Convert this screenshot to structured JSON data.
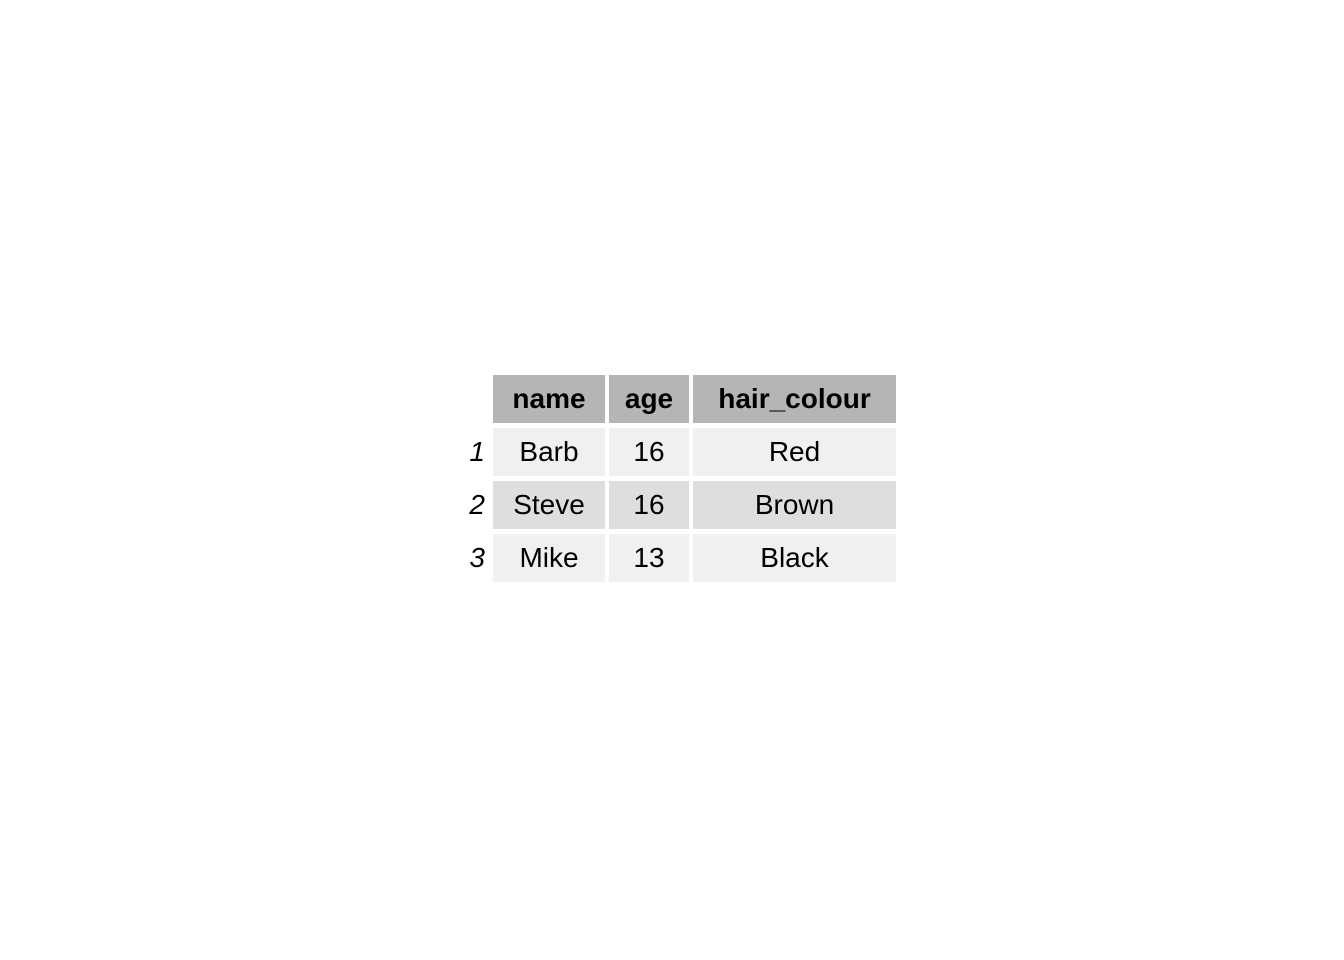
{
  "chart_data": {
    "type": "table",
    "title": "",
    "columns": [
      "name",
      "age",
      "hair_colour"
    ],
    "row_labels": [
      "1",
      "2",
      "3"
    ],
    "rows": [
      [
        "Barb",
        "16",
        "Red"
      ],
      [
        "Steve",
        "16",
        "Brown"
      ],
      [
        "Mike",
        "13",
        "Black"
      ]
    ],
    "layout": {
      "header_bold": true,
      "striped_rows": true,
      "row_labels_style": "italic",
      "cell_alignment": "center",
      "grid": "off",
      "legend": "none"
    }
  },
  "colors": {
    "page_bg": "#ffffff",
    "header_bg": "#b5b5b5",
    "row_odd_bg": "#f0f0f0",
    "row_even_bg": "#dedede",
    "text": "#000000"
  }
}
